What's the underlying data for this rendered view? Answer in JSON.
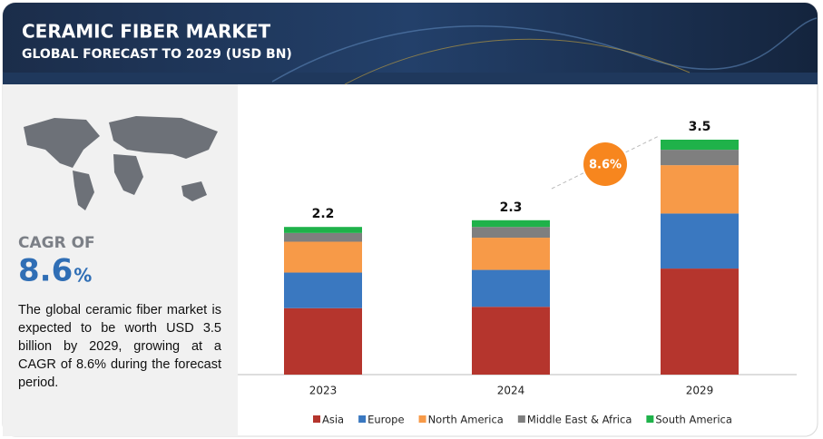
{
  "chart_data": {
    "type": "bar",
    "stacked": true,
    "title": "CERAMIC FIBER MARKET",
    "subtitle": "GLOBAL FORECAST TO 2029 (USD BN)",
    "categories": [
      "2023",
      "2024",
      "2029"
    ],
    "series": [
      {
        "name": "Asia",
        "color": "#b5352d",
        "values": [
          0.99,
          1.01,
          1.58
        ]
      },
      {
        "name": "Europe",
        "color": "#3a78c0",
        "values": [
          0.53,
          0.55,
          0.82
        ]
      },
      {
        "name": "North America",
        "color": "#f79a48",
        "values": [
          0.46,
          0.48,
          0.72
        ]
      },
      {
        "name": "Middle East & Africa",
        "color": "#7f7f7f",
        "values": [
          0.13,
          0.16,
          0.23
        ]
      },
      {
        "name": "South America",
        "color": "#1fb24a",
        "values": [
          0.09,
          0.1,
          0.15
        ]
      }
    ],
    "totals": [
      2.2,
      2.3,
      3.5
    ],
    "ylim": [
      0,
      4
    ],
    "annotation": "8.6%",
    "annotation_color": "#f7861e"
  },
  "sidebar": {
    "cagr_label": "CAGR OF",
    "cagr_value": "8.6",
    "cagr_unit": "%",
    "description": "The global ceramic fiber market is expected to be worth USD 3.5 billion by 2029, growing at a CAGR of 8.6% during the forecast period."
  }
}
